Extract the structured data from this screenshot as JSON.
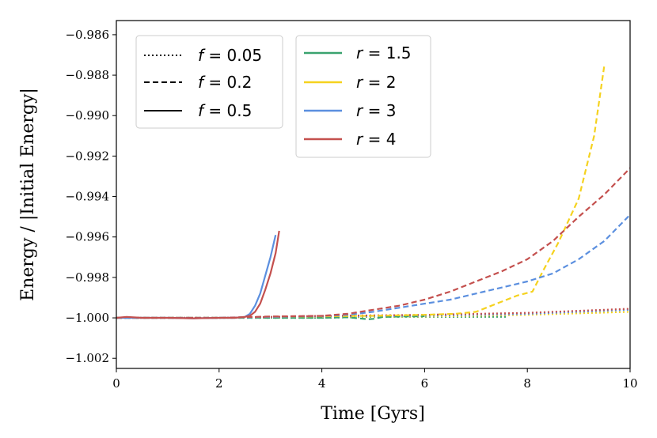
{
  "chart_data": {
    "type": "line",
    "xlabel": "Time [Gyrs]",
    "ylabel": "Energy / |Initial Energy|",
    "xlim": [
      0,
      10
    ],
    "ylim": [
      -1.0025,
      -0.9853
    ],
    "xticks": [
      0,
      2,
      4,
      6,
      8,
      10
    ],
    "xtick_labels": [
      "0",
      "2",
      "4",
      "6",
      "8",
      "10"
    ],
    "yticks": [
      -1.002,
      -1.0,
      -0.998,
      -0.996,
      -0.994,
      -0.992,
      -0.99,
      -0.988,
      -0.986
    ],
    "ytick_labels": [
      "−1.002",
      "−1.000",
      "−0.998",
      "−0.996",
      "−0.994",
      "−0.992",
      "−0.990",
      "−0.988",
      "−0.986"
    ],
    "grid": false,
    "legend_linestyle": {
      "placement": "top-left",
      "entries": [
        {
          "var": "f",
          "value": "0.05",
          "style": "dotted"
        },
        {
          "var": "f",
          "value": "0.2",
          "style": "dashed"
        },
        {
          "var": "f",
          "value": "0.5",
          "style": "solid"
        }
      ]
    },
    "legend_color": {
      "placement": "top-center",
      "entries": [
        {
          "var": "r",
          "value": "1.5",
          "color": "#3aa36f"
        },
        {
          "var": "r",
          "value": "2",
          "color": "#f5d21f"
        },
        {
          "var": "r",
          "value": "3",
          "color": "#5b8fdf"
        },
        {
          "var": "r",
          "value": "4",
          "color": "#c4504e"
        }
      ]
    },
    "series": [
      {
        "name": "f=0.05, r=1.5",
        "f": 0.05,
        "r": 1.5,
        "style": "dotted",
        "color": "#3aa36f",
        "x": [
          0,
          1,
          2,
          3,
          4,
          5,
          6,
          7,
          7.6
        ],
        "y": [
          -1.0,
          -1.0,
          -1.0,
          -1.0,
          -1.0,
          -0.99995,
          -0.99995,
          -0.99995,
          -0.99995
        ]
      },
      {
        "name": "f=0.05, r=2",
        "f": 0.05,
        "r": 2,
        "style": "dotted",
        "color": "#f5d21f",
        "x": [
          0,
          2,
          4,
          6,
          8,
          10
        ],
        "y": [
          -1.0,
          -1.0,
          -0.99995,
          -0.99993,
          -0.99985,
          -0.9997
        ]
      },
      {
        "name": "f=0.05, r=3",
        "f": 0.05,
        "r": 3,
        "style": "dotted",
        "color": "#5b8fdf",
        "x": [
          0,
          2,
          4,
          6,
          8,
          10
        ],
        "y": [
          -1.0,
          -1.0,
          -0.99993,
          -0.9999,
          -0.9998,
          -0.9996
        ]
      },
      {
        "name": "f=0.05, r=4",
        "f": 0.05,
        "r": 4,
        "style": "dotted",
        "color": "#c4504e",
        "x": [
          0,
          2,
          4,
          6,
          8,
          10
        ],
        "y": [
          -1.0,
          -1.0,
          -0.9999,
          -0.99985,
          -0.99975,
          -0.99955
        ]
      },
      {
        "name": "f=0.2, r=1.5",
        "f": 0.2,
        "r": 1.5,
        "style": "dashed",
        "color": "#3aa36f",
        "x": [
          0,
          1,
          2,
          3,
          4,
          4.5,
          4.9,
          5.0,
          5.2,
          5.6,
          6.0
        ],
        "y": [
          -1.0,
          -1.0,
          -1.0,
          -1.0,
          -1.0,
          -0.99997,
          -1.00007,
          -1.00005,
          -0.99995,
          -0.99993,
          -0.99992
        ]
      },
      {
        "name": "f=0.2, r=2",
        "f": 0.2,
        "r": 2,
        "style": "dashed",
        "color": "#f5d21f",
        "x": [
          0,
          2,
          3,
          4,
          5,
          6,
          6.6,
          7.0,
          7.4,
          7.8,
          8.1,
          8.3,
          8.6,
          9.0,
          9.3,
          9.5
        ],
        "y": [
          -1.0,
          -1.0,
          -0.99995,
          -0.99992,
          -0.9999,
          -0.99985,
          -0.9998,
          -0.9997,
          -0.9993,
          -0.9989,
          -0.9987,
          -0.9977,
          -0.9963,
          -0.9941,
          -0.991,
          -0.9875
        ]
      },
      {
        "name": "f=0.2, r=3",
        "f": 0.2,
        "r": 3,
        "style": "dashed",
        "color": "#5b8fdf",
        "x": [
          0,
          2,
          3,
          4,
          4.5,
          5,
          5.5,
          6,
          6.5,
          7,
          7.5,
          8,
          8.5,
          9,
          9.5,
          10
        ],
        "y": [
          -1.0,
          -1.0,
          -0.99995,
          -0.9999,
          -0.99985,
          -0.9997,
          -0.9995,
          -0.9993,
          -0.9991,
          -0.9988,
          -0.9985,
          -0.9982,
          -0.9978,
          -0.9971,
          -0.9962,
          -0.9949
        ]
      },
      {
        "name": "f=0.2, r=4",
        "f": 0.2,
        "r": 4,
        "style": "dashed",
        "color": "#c4504e",
        "x": [
          0,
          2,
          3,
          4,
          4.5,
          5,
          5.5,
          6,
          6.5,
          7,
          7.5,
          8,
          8.5,
          9,
          9.5,
          10
        ],
        "y": [
          -1.0,
          -1.0,
          -0.99993,
          -0.9999,
          -0.9998,
          -0.9996,
          -0.9994,
          -0.9991,
          -0.9987,
          -0.9982,
          -0.9977,
          -0.9971,
          -0.9962,
          -0.995,
          -0.9939,
          -0.9926
        ]
      },
      {
        "name": "f=0.5, r=3",
        "f": 0.5,
        "r": 3,
        "style": "solid",
        "color": "#5b8fdf",
        "x": [
          0,
          0.5,
          1,
          1.5,
          2,
          2.3,
          2.5,
          2.6,
          2.7,
          2.8,
          2.9,
          3.0,
          3.1
        ],
        "y": [
          -1.0,
          -1.0,
          -1.0,
          -1.00002,
          -1.0,
          -1.0,
          -0.99995,
          -0.9998,
          -0.9994,
          -0.9988,
          -0.9979,
          -0.997,
          -0.9959
        ]
      },
      {
        "name": "f=0.5, r=4",
        "f": 0.5,
        "r": 4,
        "style": "solid",
        "color": "#c4504e",
        "x": [
          0,
          0.2,
          0.5,
          1,
          1.5,
          2,
          2.3,
          2.5,
          2.6,
          2.7,
          2.8,
          2.9,
          3.0,
          3.1,
          3.17
        ],
        "y": [
          -1.0,
          -0.99995,
          -1.0,
          -1.0,
          -1.00002,
          -1.0,
          -1.0,
          -0.99995,
          -0.9999,
          -0.9997,
          -0.9993,
          -0.9986,
          -0.9978,
          -0.9968,
          -0.9957
        ]
      }
    ]
  }
}
